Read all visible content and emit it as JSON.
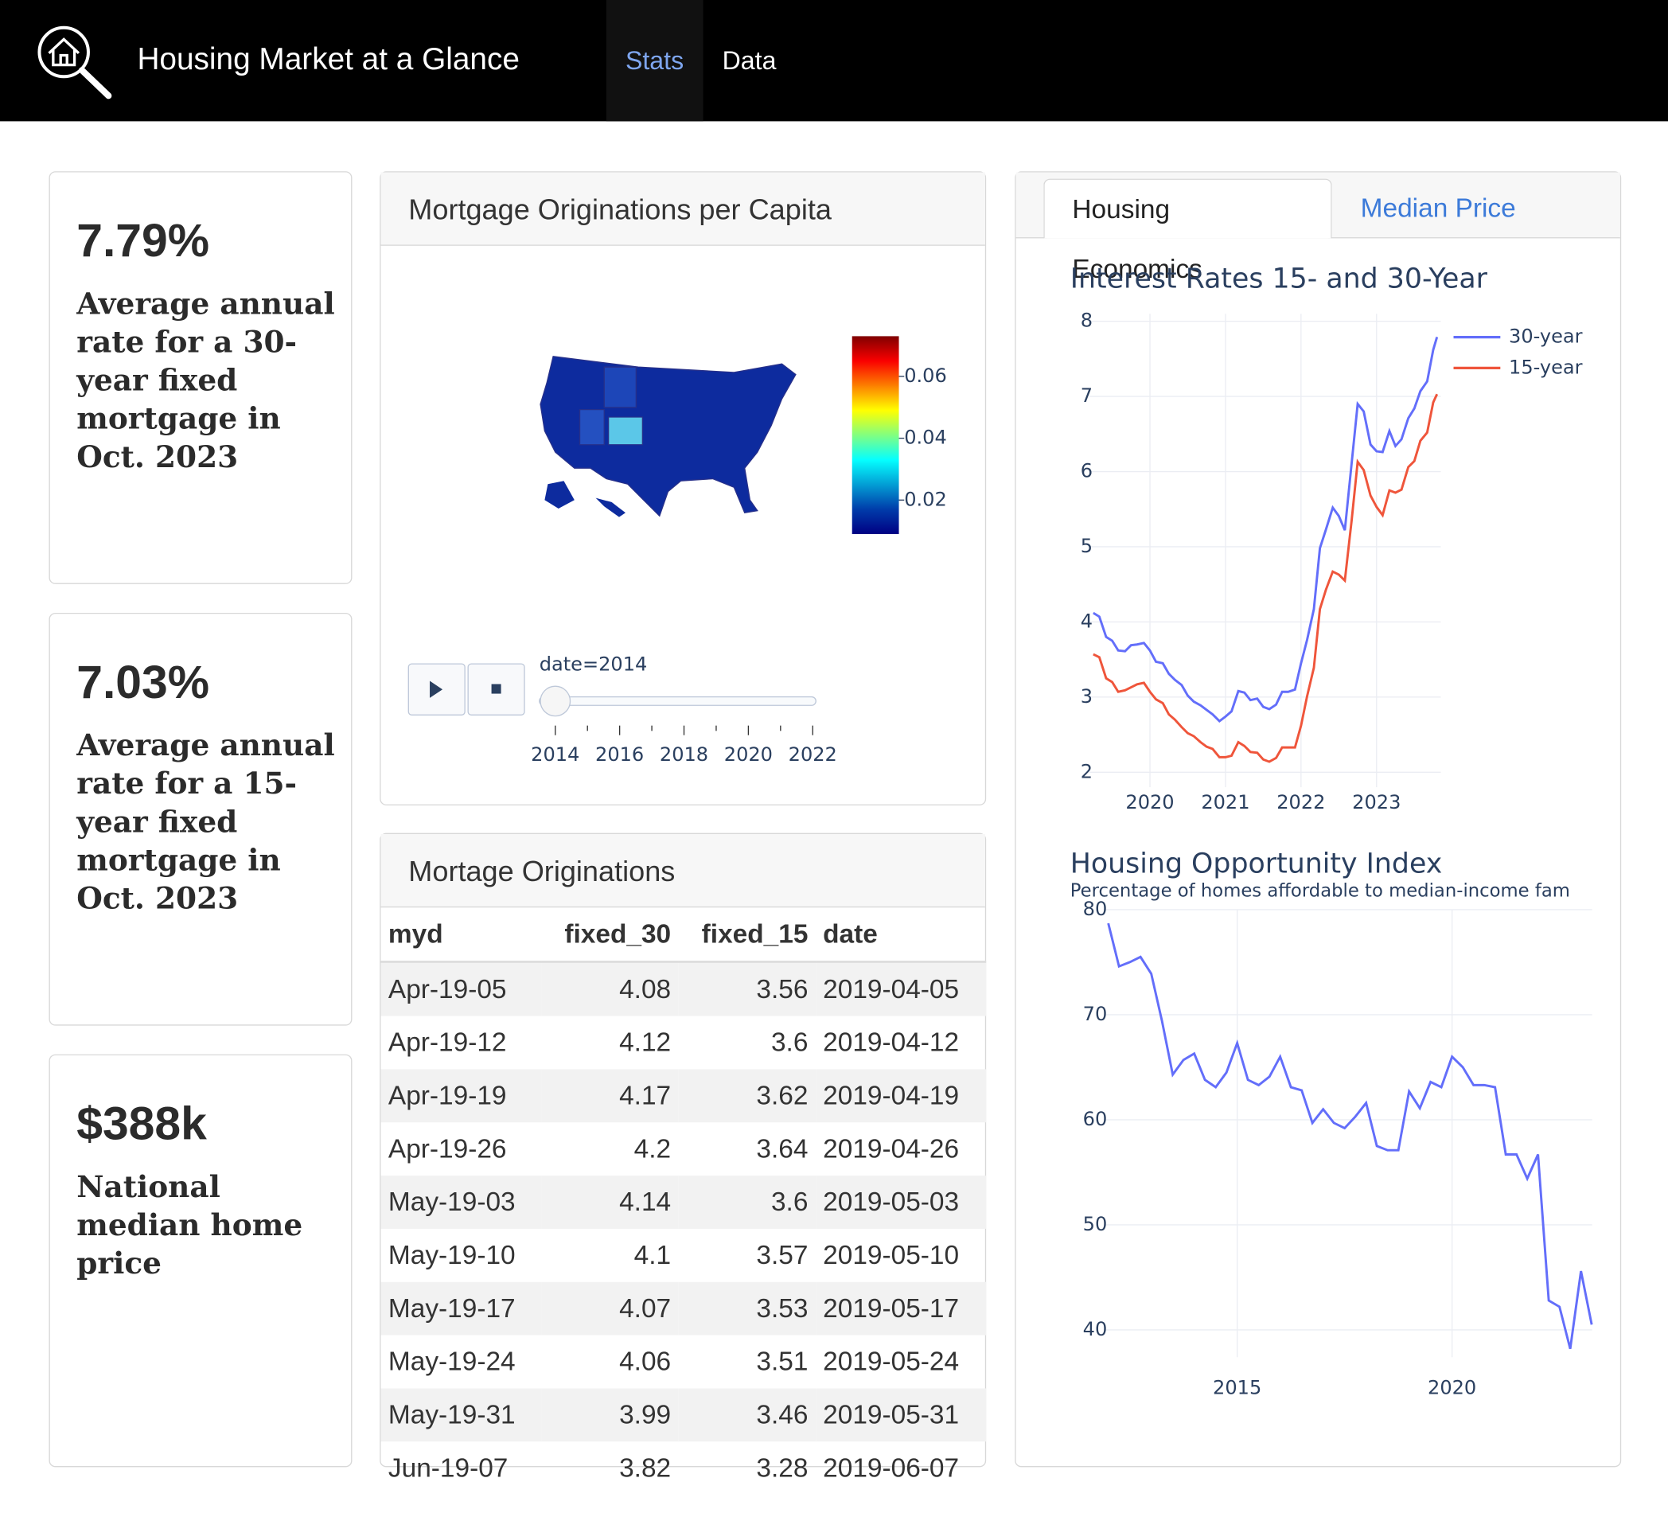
{
  "header": {
    "title": "Housing Market at a Glance",
    "nav": [
      "Stats",
      "Data"
    ]
  },
  "kpis": [
    {
      "value": "7.79%",
      "label": "Average annual rate for a 30-year fixed mortgage in Oct. 2023"
    },
    {
      "value": "7.03%",
      "label": "Average annual rate for a 15-year fixed mortgage in Oct. 2023"
    },
    {
      "value": "$388k",
      "label": "National median home price"
    }
  ],
  "map_card": {
    "title": "Mortgage Originations per Capita",
    "colorbar": {
      "range": [
        0.009,
        0.073
      ],
      "ticks": [
        0.02,
        0.04,
        0.06
      ]
    },
    "slider": {
      "label": "date=2014",
      "ticks": [
        2014,
        2016,
        2018,
        2020,
        2022
      ]
    }
  },
  "table": {
    "title": "Mortage Originations",
    "columns": [
      "myd",
      "fixed_30",
      "fixed_15",
      "date"
    ],
    "rows": [
      [
        "Apr-19-05",
        4.08,
        3.56,
        "2019-04-05"
      ],
      [
        "Apr-19-12",
        4.12,
        3.6,
        "2019-04-12"
      ],
      [
        "Apr-19-19",
        4.17,
        3.62,
        "2019-04-19"
      ],
      [
        "Apr-19-26",
        4.2,
        3.64,
        "2019-04-26"
      ],
      [
        "May-19-03",
        4.14,
        3.6,
        "2019-05-03"
      ],
      [
        "May-19-10",
        4.1,
        3.57,
        "2019-05-10"
      ],
      [
        "May-19-17",
        4.07,
        3.53,
        "2019-05-17"
      ],
      [
        "May-19-24",
        4.06,
        3.51,
        "2019-05-24"
      ],
      [
        "May-19-31",
        3.99,
        3.46,
        "2019-05-31"
      ],
      [
        "Jun-19-07",
        3.82,
        3.28,
        "2019-06-07"
      ]
    ]
  },
  "tabs": [
    "Housing Economics",
    "Median Price"
  ],
  "chart_data": [
    {
      "type": "line",
      "title": "Interest Rates 15- and 30-Year",
      "x": [
        2019.25,
        2019.33,
        2019.42,
        2019.5,
        2019.58,
        2019.67,
        2019.75,
        2019.83,
        2019.92,
        2020,
        2020.08,
        2020.17,
        2020.25,
        2020.33,
        2020.42,
        2020.5,
        2020.58,
        2020.67,
        2020.75,
        2020.83,
        2020.92,
        2021,
        2021.08,
        2021.17,
        2021.25,
        2021.33,
        2021.42,
        2021.5,
        2021.58,
        2021.67,
        2021.75,
        2021.83,
        2021.92,
        2022,
        2022.08,
        2022.17,
        2022.25,
        2022.33,
        2022.42,
        2022.5,
        2022.58,
        2022.67,
        2022.75,
        2022.83,
        2022.92,
        2023,
        2023.08,
        2023.17,
        2023.25,
        2023.33,
        2023.42,
        2023.5,
        2023.58,
        2023.67,
        2023.75,
        2023.8
      ],
      "series": [
        {
          "name": "30-year",
          "color": "#636efa",
          "values": [
            4.12,
            4.07,
            3.8,
            3.75,
            3.62,
            3.61,
            3.69,
            3.7,
            3.72,
            3.62,
            3.47,
            3.45,
            3.31,
            3.23,
            3.16,
            3.02,
            2.94,
            2.89,
            2.83,
            2.77,
            2.68,
            2.74,
            2.81,
            3.08,
            3.06,
            2.96,
            2.98,
            2.87,
            2.84,
            2.9,
            3.07,
            3.07,
            3.1,
            3.45,
            3.76,
            4.17,
            4.98,
            5.23,
            5.52,
            5.41,
            5.22,
            6.11,
            6.9,
            6.8,
            6.36,
            6.27,
            6.26,
            6.54,
            6.34,
            6.43,
            6.71,
            6.84,
            7.07,
            7.2,
            7.62,
            7.79
          ]
        },
        {
          "name": "15-year",
          "color": "#ef553b",
          "values": [
            3.57,
            3.53,
            3.25,
            3.2,
            3.07,
            3.09,
            3.13,
            3.17,
            3.19,
            3.07,
            2.97,
            2.92,
            2.77,
            2.7,
            2.6,
            2.52,
            2.48,
            2.4,
            2.34,
            2.31,
            2.2,
            2.2,
            2.22,
            2.4,
            2.35,
            2.27,
            2.26,
            2.17,
            2.14,
            2.19,
            2.33,
            2.33,
            2.33,
            2.62,
            3.01,
            3.39,
            4.17,
            4.43,
            4.67,
            4.63,
            4.55,
            5.35,
            6.13,
            6.02,
            5.68,
            5.53,
            5.42,
            5.75,
            5.72,
            5.76,
            6.06,
            6.14,
            6.41,
            6.52,
            6.92,
            7.03
          ]
        }
      ],
      "xlim": [
        2019.2,
        2023.85
      ],
      "ylim": [
        1.8,
        8.1
      ],
      "xticks": [
        2020,
        2021,
        2022,
        2023
      ],
      "yticks": [
        2,
        3,
        4,
        5,
        6,
        7,
        8
      ],
      "grid": true,
      "legend": "top-right"
    },
    {
      "type": "line",
      "title": "Housing Opportunity Index",
      "subtitle": "Percentage of homes affordable to median-income fam",
      "x": [
        2012,
        2012.25,
        2012.5,
        2012.75,
        2013,
        2013.25,
        2013.5,
        2013.75,
        2014,
        2014.25,
        2014.5,
        2014.75,
        2015,
        2015.25,
        2015.5,
        2015.75,
        2016,
        2016.25,
        2016.5,
        2016.75,
        2017,
        2017.25,
        2017.5,
        2017.75,
        2018,
        2018.25,
        2018.5,
        2018.75,
        2019,
        2019.25,
        2019.5,
        2019.75,
        2020,
        2020.25,
        2020.5,
        2020.75,
        2021,
        2021.25,
        2021.5,
        2021.75,
        2022,
        2022.25,
        2022.5,
        2022.75,
        2023,
        2023.25
      ],
      "values": [
        78.7,
        74.6,
        75,
        75.5,
        73.9,
        69.4,
        64.3,
        65.7,
        66.3,
        63.8,
        63.1,
        64.5,
        67.3,
        63.8,
        63.3,
        64.1,
        66,
        63.1,
        62.8,
        59.7,
        61,
        59.7,
        59.2,
        60.3,
        61.6,
        57.5,
        57.1,
        57.1,
        62.7,
        61.1,
        63.6,
        63.1,
        66,
        65,
        63.3,
        63.3,
        63.1,
        56.7,
        56.7,
        54.4,
        56.7,
        42.8,
        42.2,
        38.2,
        45.6,
        40.5
      ],
      "color": "#636efa",
      "xlim": [
        2011.9,
        2023.26
      ],
      "ylim": [
        37.4,
        80
      ],
      "xticks": [
        2015,
        2020
      ],
      "yticks": [
        40,
        50,
        60,
        70,
        80
      ],
      "grid": true
    }
  ]
}
